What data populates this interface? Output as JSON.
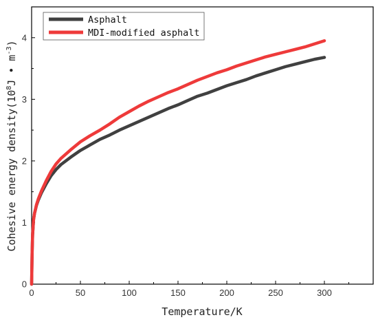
{
  "chart_data": {
    "type": "line",
    "title": "",
    "xlabel": "Temperature/K",
    "ylabel": {
      "prefix": "Cohesive energy density(10",
      "exp1": "8",
      "middle": "J • m",
      "exp2": "-3",
      "suffix": ")"
    },
    "xlim": [
      0,
      350
    ],
    "ylim": [
      0,
      4.5
    ],
    "x_ticks": [
      "0",
      "50",
      "100",
      "150",
      "200",
      "250",
      "300"
    ],
    "y_ticks": [
      "0",
      "1",
      "2",
      "3",
      "4"
    ],
    "legend_position": "top-left",
    "grid": false,
    "series": [
      {
        "name": "Asphalt",
        "color": "#404040",
        "x": [
          0,
          0.5,
          1,
          2,
          3,
          5,
          7,
          10,
          15,
          20,
          25,
          30,
          40,
          50,
          60,
          70,
          80,
          90,
          100,
          110,
          120,
          130,
          140,
          150,
          160,
          170,
          180,
          190,
          200,
          210,
          220,
          230,
          240,
          250,
          260,
          270,
          280,
          290,
          300
        ],
        "values": [
          0,
          0.5,
          0.8,
          1.05,
          1.15,
          1.28,
          1.37,
          1.48,
          1.63,
          1.76,
          1.86,
          1.94,
          2.06,
          2.17,
          2.26,
          2.35,
          2.42,
          2.5,
          2.57,
          2.64,
          2.71,
          2.78,
          2.85,
          2.91,
          2.98,
          3.05,
          3.1,
          3.16,
          3.22,
          3.27,
          3.32,
          3.38,
          3.43,
          3.48,
          3.53,
          3.57,
          3.61,
          3.65,
          3.68
        ]
      },
      {
        "name": "MDI-modified asphalt",
        "color": "#ee3a3a",
        "x": [
          0,
          0.5,
          1,
          2,
          3,
          5,
          7,
          10,
          15,
          20,
          25,
          30,
          40,
          50,
          60,
          70,
          80,
          90,
          100,
          110,
          120,
          130,
          140,
          150,
          160,
          170,
          180,
          190,
          200,
          210,
          220,
          230,
          240,
          250,
          260,
          270,
          280,
          290,
          300
        ],
        "values": [
          0,
          0.5,
          0.8,
          1.05,
          1.15,
          1.29,
          1.39,
          1.51,
          1.68,
          1.83,
          1.95,
          2.04,
          2.18,
          2.31,
          2.41,
          2.5,
          2.6,
          2.71,
          2.8,
          2.89,
          2.97,
          3.04,
          3.11,
          3.17,
          3.24,
          3.31,
          3.37,
          3.43,
          3.48,
          3.54,
          3.59,
          3.64,
          3.69,
          3.73,
          3.77,
          3.81,
          3.85,
          3.9,
          3.95
        ]
      }
    ]
  }
}
